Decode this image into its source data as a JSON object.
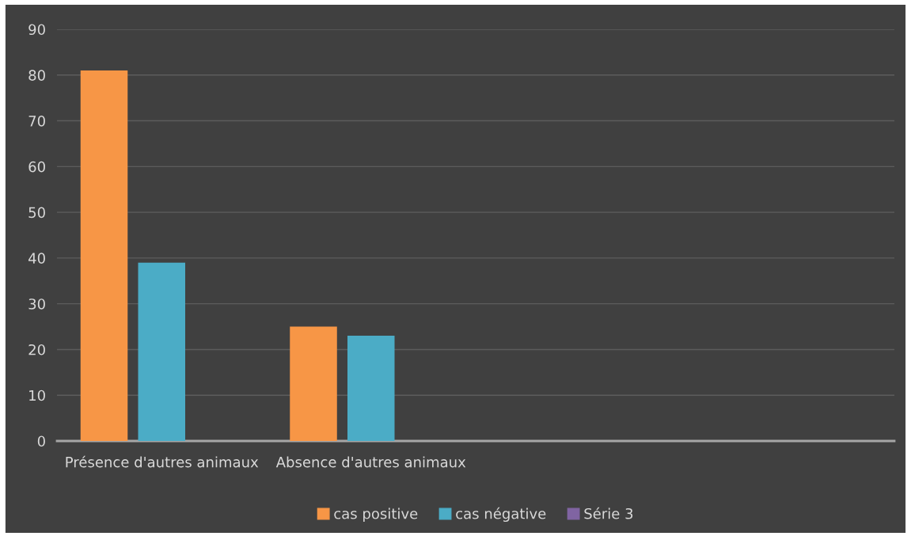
{
  "chart_data": {
    "type": "bar",
    "categories": [
      "Présence d'autres animaux",
      "Absence d'autres animaux",
      null,
      null
    ],
    "series": [
      {
        "name": "cas positive",
        "color": "#f79646",
        "values": [
          81,
          25,
          null,
          null
        ]
      },
      {
        "name": "cas négative",
        "color": "#4bacc6",
        "values": [
          39,
          23,
          null,
          null
        ]
      },
      {
        "name": "Série 3",
        "color": "#8064a2",
        "values": [
          null,
          null,
          null,
          null
        ]
      }
    ],
    "ylim": [
      0,
      90
    ],
    "yticks": [
      0,
      10,
      20,
      30,
      40,
      50,
      60,
      70,
      80,
      90
    ],
    "grid": "y",
    "legend": "bottom"
  }
}
